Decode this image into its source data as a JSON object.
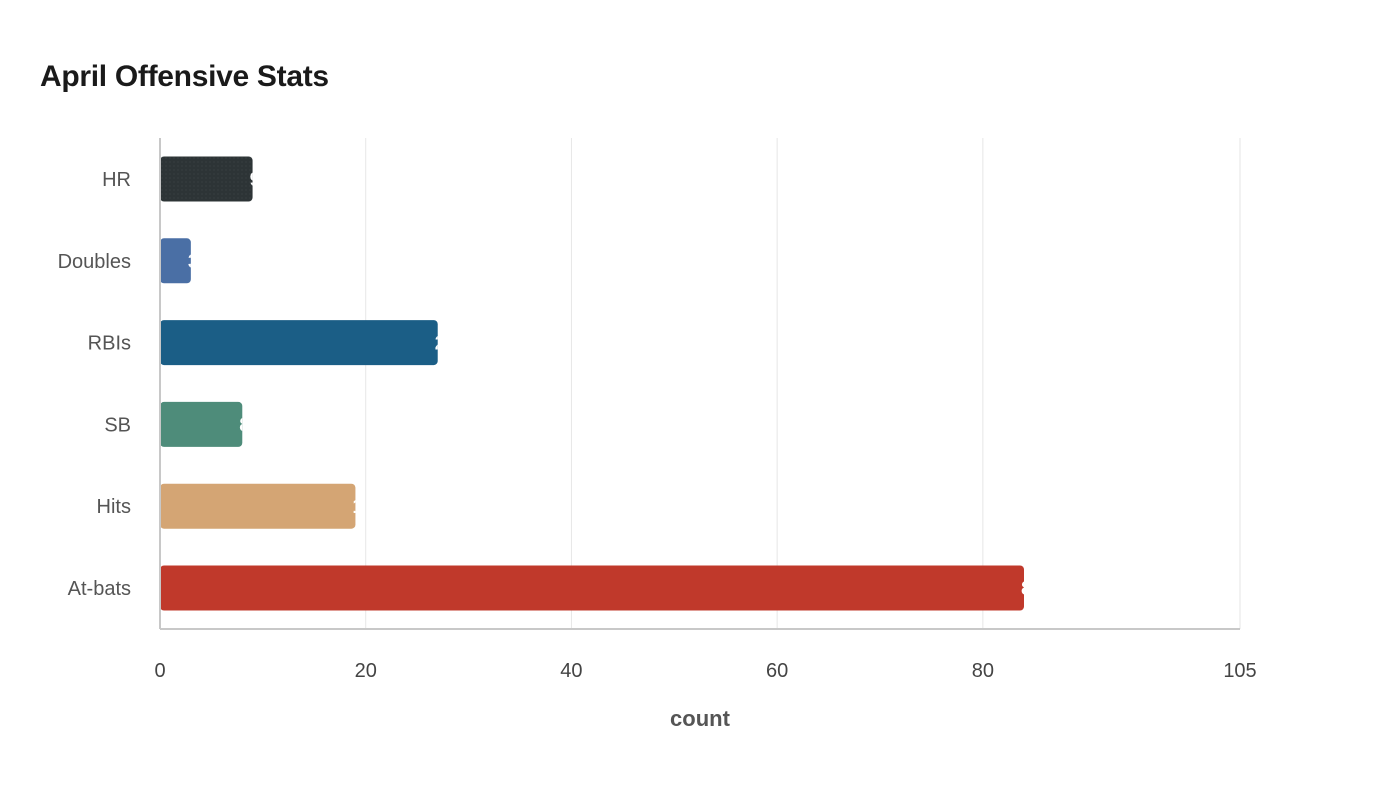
{
  "chart_data": {
    "type": "bar",
    "orientation": "horizontal",
    "title": "April Offensive Stats",
    "xlabel": "count",
    "ylabel": "",
    "categories": [
      "HR",
      "Doubles",
      "RBIs",
      "SB",
      "Hits",
      "At-bats"
    ],
    "values": [
      9,
      3,
      27,
      8,
      19,
      84
    ],
    "colors": [
      "#2d3436",
      "#4a6fa5",
      "#1b5e86",
      "#4e8c7a",
      "#d4a574",
      "#c0392b"
    ],
    "xlim": [
      0,
      105
    ],
    "xticks": [
      0,
      20,
      40,
      60,
      80,
      105
    ],
    "grid": true,
    "legend": "none"
  }
}
